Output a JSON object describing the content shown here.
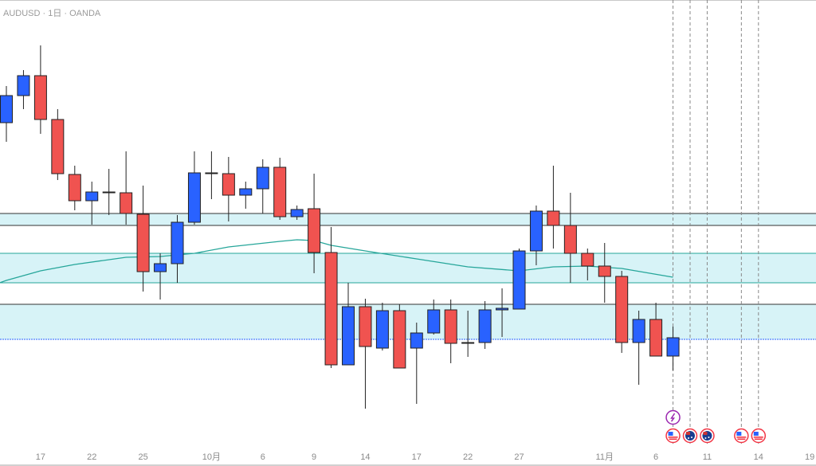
{
  "header": {
    "title": "AUDUSD · 1日 · OANDA"
  },
  "colors": {
    "up": "#2962ff",
    "down": "#f05350",
    "ma": "#26a69a",
    "zone_fill": "#d7f3f7",
    "event_purple": "#9c27b0",
    "flag_red": "#f23645"
  },
  "chart_data": {
    "type": "candlestick",
    "title": "AUDUSD · 1日 · OANDA",
    "xlabel": "",
    "ylabel": "",
    "ylim": [
      0.6415,
      0.7
    ],
    "ohlc_fields": [
      "open",
      "high",
      "low",
      "close"
    ],
    "candles": [
      [
        0.6846,
        0.6892,
        0.6822,
        0.688
      ],
      [
        0.688,
        0.6912,
        0.6863,
        0.6905
      ],
      [
        0.6905,
        0.6943,
        0.6832,
        0.685
      ],
      [
        0.685,
        0.6863,
        0.6774,
        0.6782
      ],
      [
        0.6781,
        0.6792,
        0.6736,
        0.6748
      ],
      [
        0.6748,
        0.6772,
        0.6718,
        0.6759
      ],
      [
        0.6759,
        0.6788,
        0.673,
        0.6758
      ],
      [
        0.6758,
        0.681,
        0.6718,
        0.6732
      ],
      [
        0.6731,
        0.6767,
        0.6634,
        0.6659
      ],
      [
        0.6659,
        0.6682,
        0.6624,
        0.6669
      ],
      [
        0.6669,
        0.673,
        0.6645,
        0.6721
      ],
      [
        0.6721,
        0.681,
        0.6718,
        0.6783
      ],
      [
        0.6783,
        0.681,
        0.675,
        0.6782
      ],
      [
        0.6782,
        0.6803,
        0.6722,
        0.6755
      ],
      [
        0.6755,
        0.6772,
        0.6738,
        0.6763
      ],
      [
        0.6763,
        0.68,
        0.6732,
        0.679
      ],
      [
        0.679,
        0.6802,
        0.6724,
        0.6728
      ],
      [
        0.6728,
        0.6742,
        0.6724,
        0.6737
      ],
      [
        0.6738,
        0.6782,
        0.6657,
        0.6683
      ],
      [
        0.6683,
        0.6715,
        0.6538,
        0.6542
      ],
      [
        0.6542,
        0.6645,
        0.6542,
        0.6615
      ],
      [
        0.6615,
        0.6625,
        0.6487,
        0.6565
      ],
      [
        0.6563,
        0.662,
        0.656,
        0.661
      ],
      [
        0.661,
        0.6618,
        0.6538,
        0.6538
      ],
      [
        0.6563,
        0.6595,
        0.6493,
        0.6582
      ],
      [
        0.6582,
        0.6624,
        0.658,
        0.6611
      ],
      [
        0.6611,
        0.6624,
        0.6544,
        0.6569
      ],
      [
        0.6569,
        0.661,
        0.6552,
        0.657
      ],
      [
        0.657,
        0.6622,
        0.6562,
        0.6611
      ],
      [
        0.6611,
        0.6638,
        0.6577,
        0.6613
      ],
      [
        0.6612,
        0.6688,
        0.6612,
        0.6685
      ],
      [
        0.6685,
        0.6742,
        0.6667,
        0.6735
      ],
      [
        0.6735,
        0.6792,
        0.6688,
        0.6717
      ],
      [
        0.6717,
        0.6758,
        0.6645,
        0.6682
      ],
      [
        0.6682,
        0.6688,
        0.6648,
        0.6666
      ],
      [
        0.6666,
        0.6695,
        0.662,
        0.6653
      ],
      [
        0.6653,
        0.666,
        0.6557,
        0.657
      ],
      [
        0.657,
        0.661,
        0.6517,
        0.6599
      ],
      [
        0.6599,
        0.662,
        0.6553,
        0.6553
      ],
      [
        0.6553,
        0.659,
        0.6535,
        0.6576
      ]
    ],
    "moving_average": [
      [
        -0.4,
        0.6645
      ],
      [
        0,
        0.6648
      ],
      [
        2,
        0.666
      ],
      [
        4,
        0.6668
      ],
      [
        7,
        0.6677
      ],
      [
        9,
        0.6678
      ],
      [
        11,
        0.6682
      ],
      [
        13,
        0.669
      ],
      [
        16,
        0.6697
      ],
      [
        17,
        0.6699
      ],
      [
        18,
        0.6698
      ],
      [
        19,
        0.6692
      ],
      [
        21,
        0.6685
      ],
      [
        24,
        0.6675
      ],
      [
        27,
        0.6665
      ],
      [
        30,
        0.666
      ],
      [
        32,
        0.6665
      ],
      [
        34,
        0.6666
      ],
      [
        36,
        0.6663
      ],
      [
        39,
        0.6652
      ]
    ],
    "zones": [
      {
        "low": 0.6717,
        "high": 0.6732,
        "border": "#333333"
      },
      {
        "low": 0.6645,
        "high": 0.6682,
        "border": "#26a69a"
      },
      {
        "low": 0.6574,
        "high": 0.6618,
        "border": "#333333",
        "bottom_border": "#2962ff"
      }
    ],
    "x_ticks": [
      {
        "label": "17",
        "index": 2
      },
      {
        "label": "22",
        "index": 5
      },
      {
        "label": "25",
        "index": 8
      },
      {
        "label": "10月",
        "index": 12
      },
      {
        "label": "6",
        "index": 15
      },
      {
        "label": "9",
        "index": 18
      },
      {
        "label": "14",
        "index": 21
      },
      {
        "label": "17",
        "index": 24
      },
      {
        "label": "22",
        "index": 27
      },
      {
        "label": "27",
        "index": 30
      },
      {
        "label": "11月",
        "index": 35
      },
      {
        "label": "6",
        "index": 38
      },
      {
        "label": "11",
        "index": 41
      },
      {
        "label": "14",
        "index": 44
      },
      {
        "label": "19",
        "index": 47
      }
    ],
    "event_lines": [
      39,
      40,
      41,
      43,
      44
    ],
    "events": [
      {
        "index": 39,
        "type": "lightning",
        "row": 0
      },
      {
        "index": 39,
        "type": "us-flag",
        "row": 1
      },
      {
        "index": 40,
        "type": "au-flag",
        "row": 1
      },
      {
        "index": 41,
        "type": "au-flag",
        "row": 1
      },
      {
        "index": 43,
        "type": "us-flag",
        "row": 1
      },
      {
        "index": 44,
        "type": "us-flag",
        "row": 1
      }
    ]
  }
}
